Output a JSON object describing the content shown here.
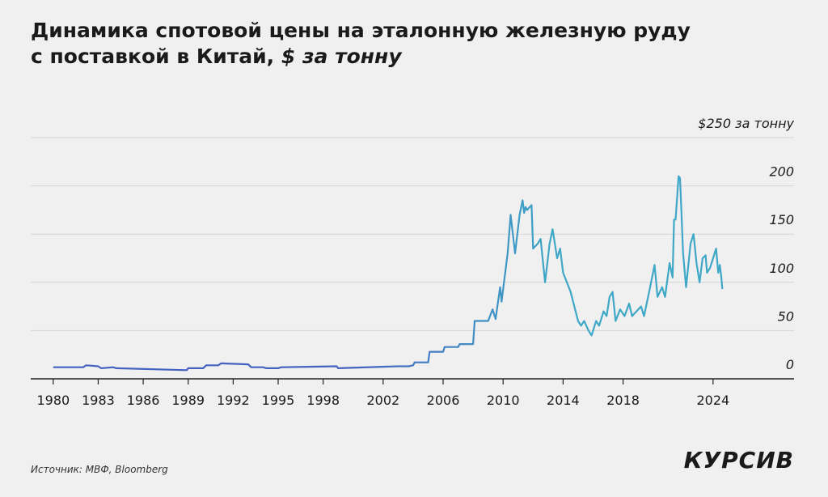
{
  "chart_data": {
    "type": "line",
    "title_lines": [
      "Динамика спотовой цены на эталонную железную руду",
      "с поставкой в Китай,"
    ],
    "title_unit": "$ за тонну",
    "xlim": [
      1978.5,
      2029.4
    ],
    "xticks": [
      1980,
      1983,
      1986,
      1989,
      1992,
      1995,
      1998,
      2002,
      2006,
      2010,
      2014,
      2018,
      2024
    ],
    "ylim": [
      0,
      250
    ],
    "yticks": [
      0,
      50,
      100,
      150,
      200,
      {
        "value": 250,
        "label": "$250 за тонну"
      }
    ],
    "grid": true,
    "series": [
      {
        "color": "#4462c0",
        "color_end": "#3ea8c6",
        "x": [
          1980,
          1982,
          1982.2,
          1983,
          1983.2,
          1984,
          1984.2,
          1988.9,
          1989,
          1990,
          1990.2,
          1991,
          1991.2,
          1993,
          1993.2,
          1994,
          1994.2,
          1995,
          1995.2,
          1998.9,
          1999,
          2003,
          2003.7,
          2004,
          2004.1,
          2005,
          2005.1,
          2006,
          2006.1,
          2007,
          2007.1,
          2008,
          2008.1,
          2009,
          2009.3,
          2009.5,
          2009.8,
          2009.9,
          2010.3,
          2010.5,
          2010.8,
          2011.1,
          2011.3,
          2011.4,
          2011.5,
          2011.6,
          2011.9,
          2012,
          2012.3,
          2012.5,
          2012.8,
          2013.1,
          2013.3,
          2013.6,
          2013.8,
          2014,
          2014.5,
          2015,
          2015.2,
          2015.4,
          2015.7,
          2015.9,
          2016.2,
          2016.4,
          2016.7,
          2016.9,
          2017.1,
          2017.3,
          2017.5,
          2017.8,
          2018.1,
          2018.4,
          2018.6,
          2019.2,
          2019.4,
          2019.8,
          2020.1,
          2020.3,
          2020.6,
          2020.8,
          2021.1,
          2021.3,
          2021.4,
          2021.5,
          2021.7,
          2021.8,
          2022,
          2022.2,
          2022.5,
          2022.7,
          2022.9,
          2023.1,
          2023.3,
          2023.5,
          2023.6,
          2023.8,
          2024,
          2024.2,
          2024.35,
          2024.45,
          2024.55,
          2024.62
        ],
        "values": [
          12,
          12,
          14,
          13,
          11,
          12,
          11,
          9,
          11,
          11,
          14,
          14,
          16,
          15,
          12,
          12,
          11,
          11,
          12,
          13,
          11,
          13,
          13,
          14,
          17,
          17,
          28,
          28,
          33,
          33,
          36,
          36,
          60,
          60,
          72,
          62,
          95,
          80,
          130,
          170,
          130,
          170,
          185,
          172,
          178,
          175,
          180,
          135,
          140,
          145,
          100,
          140,
          155,
          125,
          135,
          110,
          90,
          60,
          55,
          60,
          50,
          45,
          60,
          55,
          70,
          65,
          85,
          90,
          60,
          72,
          65,
          78,
          65,
          75,
          65,
          95,
          118,
          85,
          95,
          85,
          120,
          105,
          165,
          165,
          210,
          208,
          130,
          95,
          140,
          150,
          120,
          100,
          125,
          128,
          110,
          115,
          125,
          135,
          110,
          118,
          105,
          93
        ]
      }
    ]
  },
  "source": "Источник: МВФ, Bloomberg",
  "logo": "КУРСИВ"
}
